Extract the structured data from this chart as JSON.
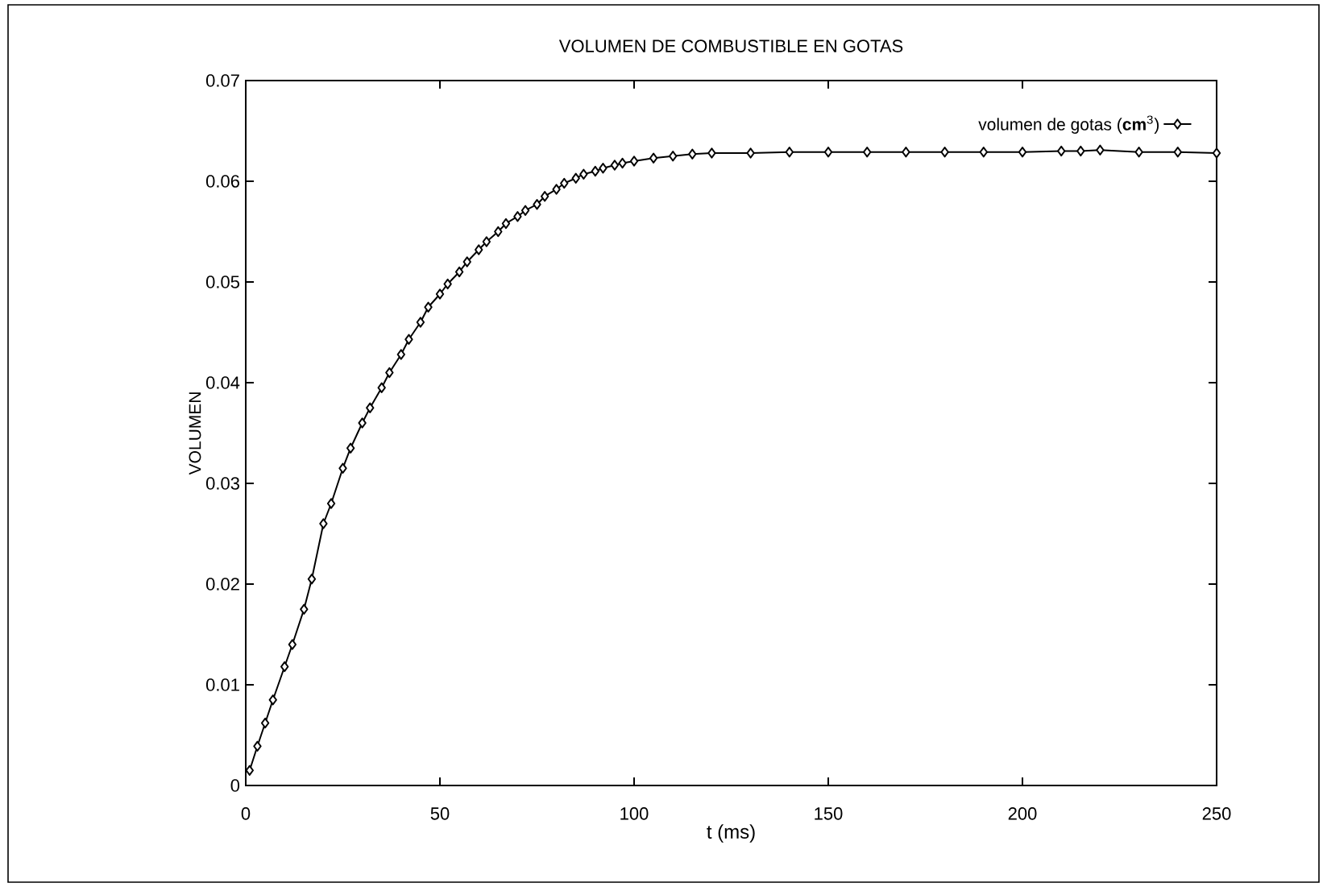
{
  "chart_data": {
    "type": "line",
    "title": "VOLUMEN DE COMBUSTIBLE EN GOTAS",
    "xlabel": "t (ms)",
    "ylabel": "VOLUMEN",
    "xlim": [
      0,
      250
    ],
    "ylim": [
      0,
      0.07
    ],
    "xticks": [
      0,
      50,
      100,
      150,
      200,
      250
    ],
    "yticks": [
      0,
      0.01,
      0.02,
      0.03,
      0.04,
      0.05,
      0.06,
      0.07
    ],
    "legend": "top right",
    "marker": "diamond",
    "line_style": "solid",
    "grid": false,
    "series": [
      {
        "name": "volumen de gotas (**cm**$^{3}$)",
        "color": "#000000",
        "x": [
          1,
          3,
          5,
          7,
          10,
          12,
          15,
          17,
          20,
          22,
          25,
          27,
          30,
          32,
          35,
          37,
          40,
          42,
          45,
          47,
          50,
          52,
          55,
          57,
          60,
          62,
          65,
          67,
          70,
          72,
          75,
          77,
          80,
          82,
          85,
          87,
          90,
          92,
          95,
          97,
          100,
          105,
          110,
          115,
          120,
          130,
          140,
          150,
          160,
          170,
          180,
          190,
          200,
          210,
          215,
          220,
          230,
          240,
          250
        ],
        "values": [
          0.0015,
          0.0039,
          0.0062,
          0.0085,
          0.0118,
          0.014,
          0.0175,
          0.0205,
          0.026,
          0.028,
          0.0315,
          0.0335,
          0.036,
          0.0375,
          0.0395,
          0.041,
          0.0428,
          0.0443,
          0.046,
          0.0475,
          0.0488,
          0.0498,
          0.051,
          0.052,
          0.0532,
          0.054,
          0.055,
          0.0558,
          0.0565,
          0.0571,
          0.0577,
          0.0585,
          0.0592,
          0.0598,
          0.0603,
          0.0607,
          0.061,
          0.0613,
          0.0616,
          0.0618,
          0.062,
          0.0623,
          0.0625,
          0.0627,
          0.0628,
          0.0628,
          0.0629,
          0.0629,
          0.0629,
          0.0629,
          0.0629,
          0.0629,
          0.0629,
          0.063,
          0.063,
          0.0631,
          0.0629,
          0.0629,
          0.0628
        ]
      }
    ]
  }
}
